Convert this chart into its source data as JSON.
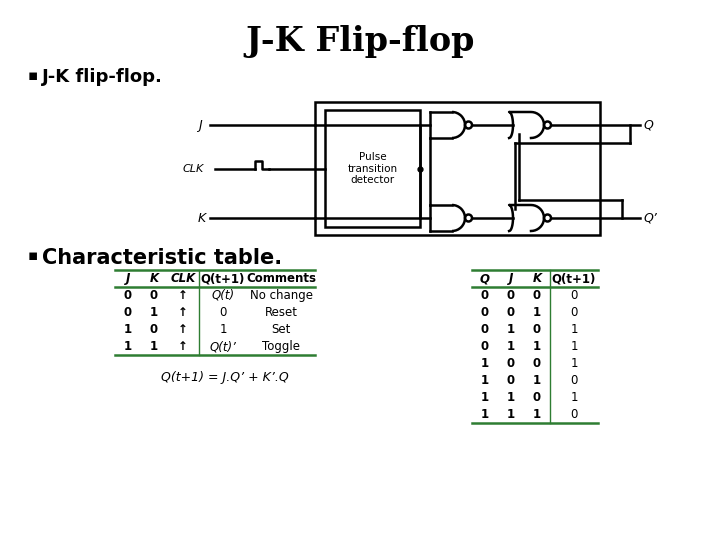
{
  "title": "J-K Flip-flop",
  "bullet1": "J-K flip-flop.",
  "bullet2": "Characteristic table.",
  "table1_headers": [
    "J",
    "K",
    "CLK",
    "Q(t+1)",
    "Comments"
  ],
  "table1_rows": [
    [
      "0",
      "0",
      "↑",
      "Q(t)",
      "No change"
    ],
    [
      "0",
      "1",
      "↑",
      "0",
      "Reset"
    ],
    [
      "1",
      "0",
      "↑",
      "1",
      "Set"
    ],
    [
      "1",
      "1",
      "↑",
      "Q(t)’",
      "Toggle"
    ]
  ],
  "table2_headers": [
    "Q",
    "J",
    "K",
    "Q(t+1)"
  ],
  "table2_rows": [
    [
      "0",
      "0",
      "0",
      "0"
    ],
    [
      "0",
      "0",
      "1",
      "0"
    ],
    [
      "0",
      "1",
      "0",
      "1"
    ],
    [
      "0",
      "1",
      "1",
      "1"
    ],
    [
      "1",
      "0",
      "0",
      "1"
    ],
    [
      "1",
      "0",
      "1",
      "0"
    ],
    [
      "1",
      "1",
      "0",
      "1"
    ],
    [
      "1",
      "1",
      "1",
      "0"
    ]
  ],
  "equation": "Q(t+1) = J.Q’ + K’.Q",
  "background_color": "#ffffff",
  "text_color": "#000000",
  "table_line_color": "#2e7d32",
  "title_fontsize": 24,
  "bullet_fontsize": 13,
  "table_fontsize": 9
}
